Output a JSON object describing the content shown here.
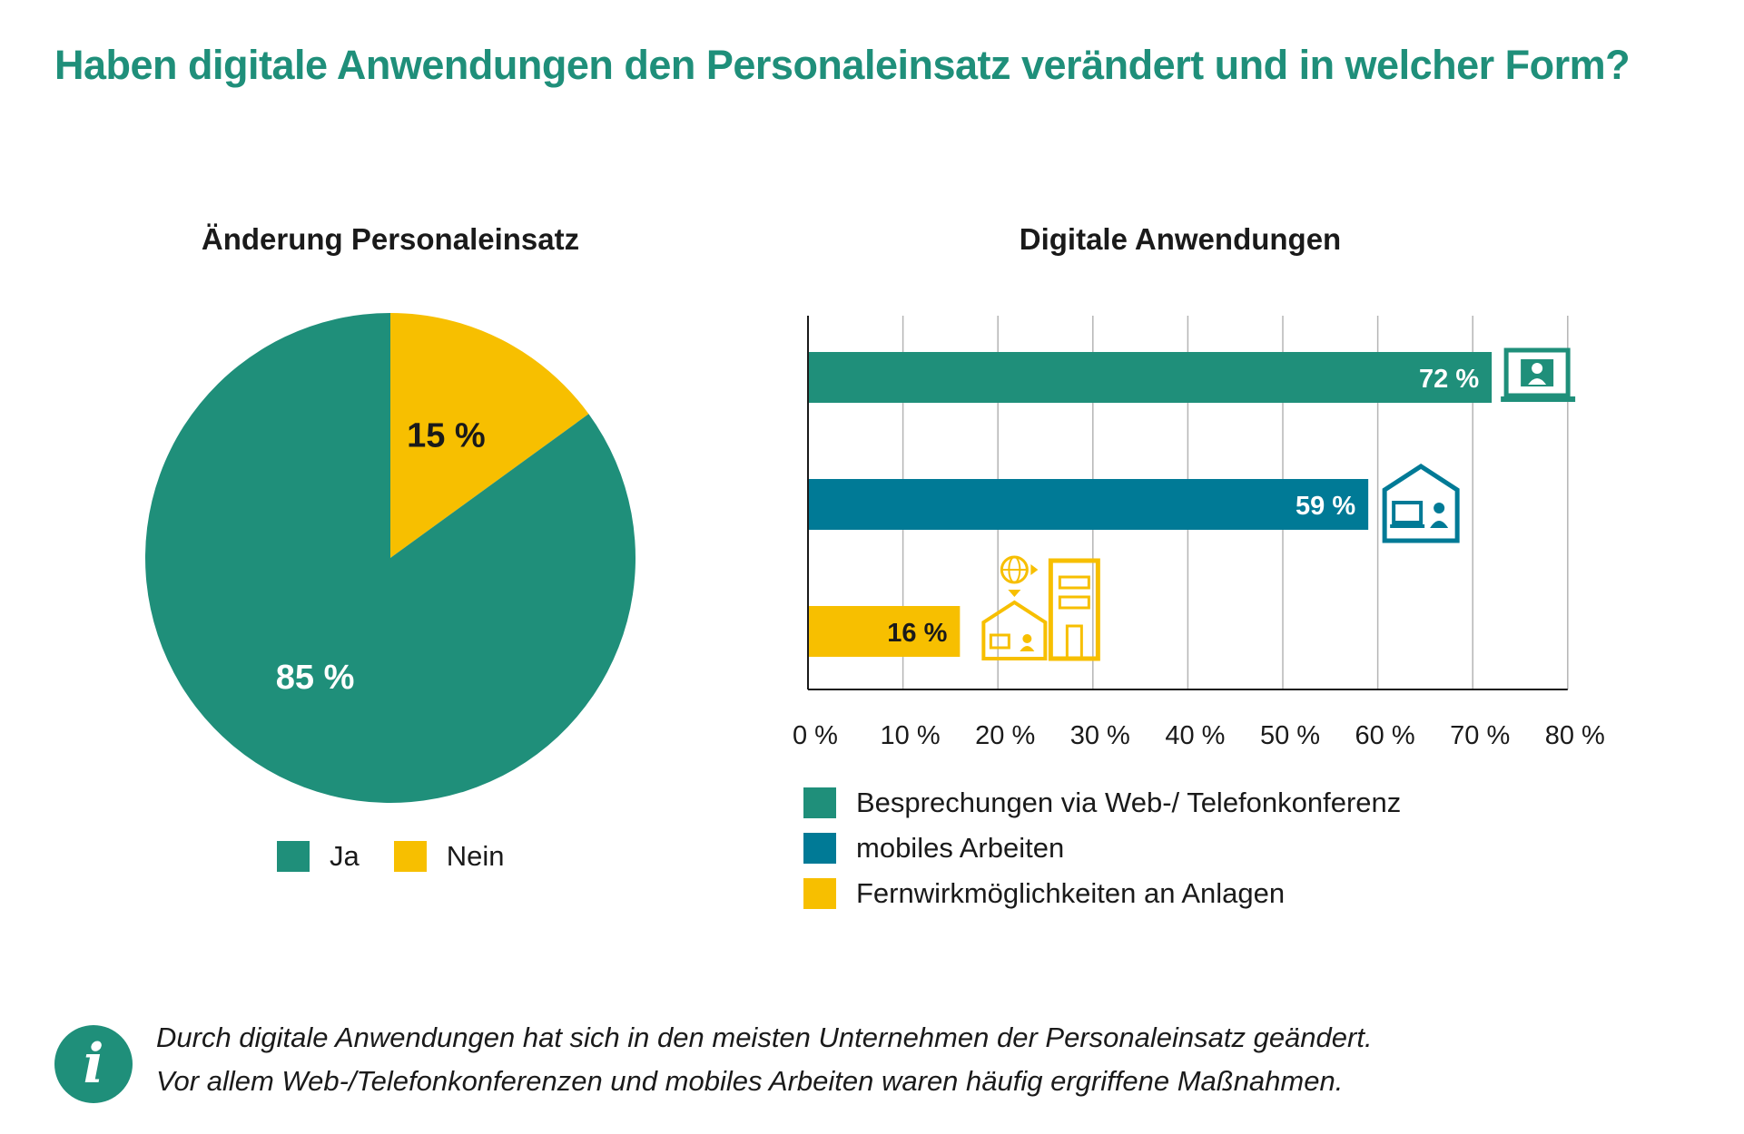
{
  "title": "Haben digitale Anwendungen den Personaleinsatz verändert und in welcher Form?",
  "colors": {
    "green": "#1f8f7a",
    "blue": "#007a96",
    "yellow": "#f7bf00",
    "title": "#1f8f7a"
  },
  "chart_data": [
    {
      "type": "pie",
      "title": "Änderung Personaleinsatz",
      "slices": [
        {
          "name": "Ja",
          "value": 85,
          "label": "85 %",
          "color": "#1f8f7a"
        },
        {
          "name": "Nein",
          "value": 15,
          "label": "15 %",
          "color": "#f7bf00"
        }
      ],
      "legend": [
        "Ja",
        "Nein"
      ],
      "legend_position": "bottom"
    },
    {
      "type": "bar",
      "orientation": "horizontal",
      "title": "Digitale Anwendungen",
      "categories": [
        "Besprechungen via Web-/ Telefonkonferenz",
        "mobiles Arbeiten",
        "Fernwirkmöglichkeiten an Anlagen"
      ],
      "values": [
        72,
        59,
        16
      ],
      "data_labels": [
        "72 %",
        "59 %",
        "16 %"
      ],
      "colors": [
        "#1f8f7a",
        "#007a96",
        "#f7bf00"
      ],
      "icons": [
        "laptop-person-icon",
        "home-office-icon",
        "remote-control-buildings-icon"
      ],
      "xlim": [
        0,
        80
      ],
      "x_ticks": [
        0,
        10,
        20,
        30,
        40,
        50,
        60,
        70,
        80
      ],
      "x_tick_labels": [
        "0 %",
        "10 %",
        "20 %",
        "30 %",
        "40 %",
        "50 %",
        "60 %",
        "70 %",
        "80 %"
      ],
      "grid": true,
      "legend_position": "bottom"
    }
  ],
  "info": {
    "icon": "info-icon",
    "symbol": "i",
    "line1": "Durch digitale Anwendungen hat sich in den meisten Unternehmen der Personaleinsatz geändert.",
    "line2": "Vor allem Web-/Telefonkonferenzen und mobiles Arbeiten waren häufig ergriffene Maßnahmen."
  }
}
